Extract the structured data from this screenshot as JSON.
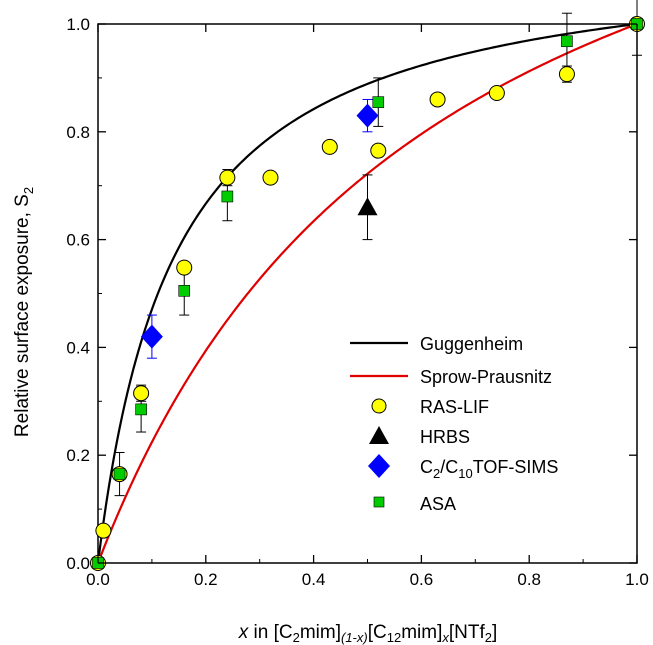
{
  "chart_data": {
    "type": "scatter",
    "xlabel": {
      "pre": "x",
      "text": " in [C",
      "s1": "2",
      "t2": "mim]",
      "s2": "(1-x)",
      "t3": "[C",
      "s3": "12",
      "t4": "mim]",
      "s4": "x",
      "t5": "[NTf",
      "s5": "2",
      "t6": "]"
    },
    "ylabel": {
      "text": "Relative surface exposure, S",
      "sub": "2"
    },
    "xlim": [
      0.0,
      1.0
    ],
    "ylim": [
      0.0,
      1.0
    ],
    "xticks": [
      "0.0",
      "0.2",
      "0.4",
      "0.6",
      "0.8",
      "1.0"
    ],
    "yticks": [
      "0.0",
      "0.2",
      "0.4",
      "0.6",
      "0.8",
      "1.0"
    ],
    "legend_position": "bottom-right",
    "lines": [
      {
        "name": "Guggenheim",
        "color": "#000000",
        "ratio": 8
      },
      {
        "name": "Sprow-Prausnitz",
        "color": "#e00000",
        "ratio": 2.6
      }
    ],
    "series": [
      {
        "name": "RAS-LIF",
        "marker": "circle",
        "color": "#ffff00",
        "points": [
          [
            0.0,
            0.0,
            0.0
          ],
          [
            0.01,
            0.06,
            0.0
          ],
          [
            0.04,
            0.165,
            0.0
          ],
          [
            0.08,
            0.315,
            0.015
          ],
          [
            0.16,
            0.548,
            0.0
          ],
          [
            0.24,
            0.715,
            0.015
          ],
          [
            0.32,
            0.715,
            0.0
          ],
          [
            0.43,
            0.772,
            0.0
          ],
          [
            0.52,
            0.765,
            0.0
          ],
          [
            0.63,
            0.86,
            0.0
          ],
          [
            0.74,
            0.872,
            0.0
          ],
          [
            0.87,
            0.907,
            0.015
          ],
          [
            1.0,
            1.0,
            0.0
          ]
        ]
      },
      {
        "name": "HRBS",
        "marker": "triangle",
        "color": "#000000",
        "points": [
          [
            0.5,
            0.66,
            0.06
          ]
        ]
      },
      {
        "name": "C2/C10TOF-SIMS",
        "marker": "diamond",
        "color": "#0000ff",
        "points": [
          [
            0.1,
            0.42,
            0.04
          ],
          [
            0.5,
            0.83,
            0.03
          ]
        ]
      },
      {
        "name": "ASA",
        "marker": "square",
        "color": "#00cc00",
        "points": [
          [
            0.0,
            0.0,
            0.0
          ],
          [
            0.04,
            0.165,
            0.04
          ],
          [
            0.08,
            0.285,
            0.042
          ],
          [
            0.16,
            0.505,
            0.045
          ],
          [
            0.24,
            0.68,
            0.045
          ],
          [
            0.52,
            0.855,
            0.045
          ],
          [
            0.87,
            0.968,
            0.052
          ],
          [
            1.0,
            1.0,
            0.058
          ]
        ]
      }
    ]
  }
}
